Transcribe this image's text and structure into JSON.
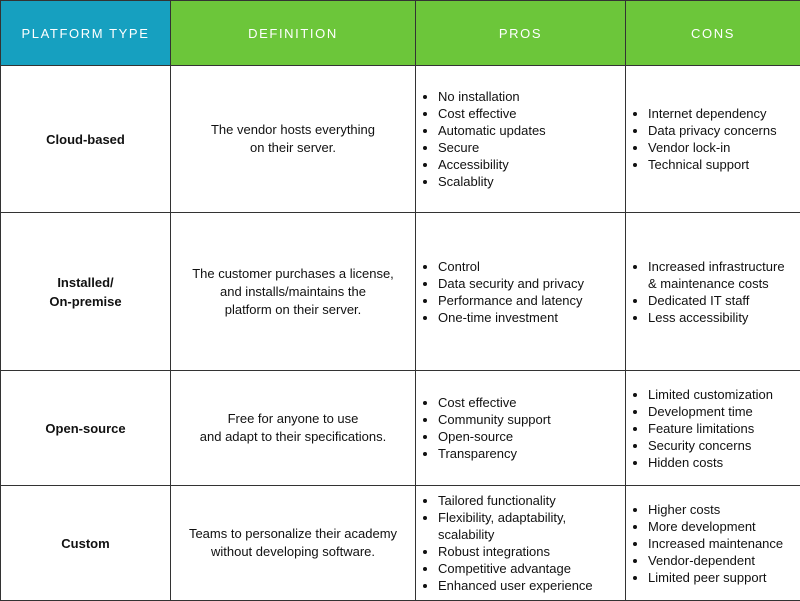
{
  "header": [
    "PLATFORM TYPE",
    "DEFINITION",
    "PROS",
    "CONS"
  ],
  "rows": [
    {
      "type": [
        "Cloud-based"
      ],
      "definition": [
        "The vendor hosts everything",
        "on their server."
      ],
      "pros": [
        "No installation",
        "Cost effective",
        "Automatic updates",
        "Secure",
        "Accessibility",
        "Scalablity"
      ],
      "cons": [
        "Internet dependency",
        "Data privacy concerns",
        "Vendor lock-in",
        "Technical support"
      ]
    },
    {
      "type": [
        "Installed/",
        "On-premise"
      ],
      "definition": [
        "The customer purchases a license,",
        "and installs/maintains the",
        "platform on their server."
      ],
      "pros": [
        "Control",
        "Data security and privacy",
        "Performance and latency",
        "One-time investment"
      ],
      "cons": [
        "Increased infrastructure & maintenance costs",
        "Dedicated IT staff",
        "Less accessibility"
      ]
    },
    {
      "type": [
        "Open-source"
      ],
      "definition": [
        "Free for anyone to use",
        "and adapt to their specifications."
      ],
      "pros": [
        "Cost effective",
        "Community support",
        "Open-source",
        "Transparency"
      ],
      "cons": [
        "Limited customization",
        "Development time",
        "Feature limitations",
        "Security concerns",
        "Hidden costs"
      ]
    },
    {
      "type": [
        "Custom"
      ],
      "definition": [
        "Teams to personalize their academy",
        "without developing software."
      ],
      "pros": [
        "Tailored functionality",
        "Flexibility, adaptability, scalability",
        "Robust integrations",
        "Competitive advantage",
        "Enhanced user experience"
      ],
      "cons": [
        "Higher costs",
        "More development",
        "Increased maintenance",
        "Vendor-dependent",
        "Limited peer support"
      ]
    }
  ]
}
